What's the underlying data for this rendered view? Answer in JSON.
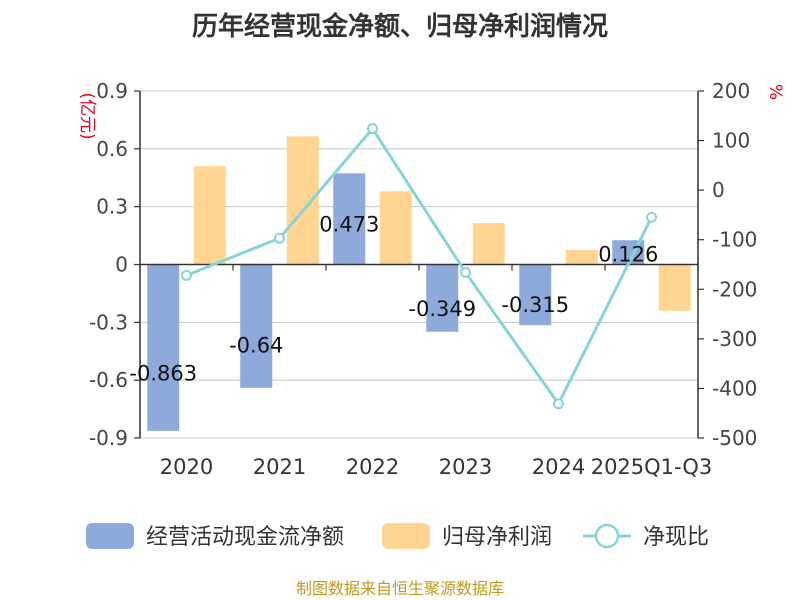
{
  "chart_data": {
    "type": "bar",
    "title": "历年经营现金净额、归母净利润情况",
    "categories": [
      "2020",
      "2021",
      "2022",
      "2023",
      "2024",
      "2025Q1-Q3"
    ],
    "left_unit": "(亿元)",
    "right_unit": "%",
    "left_ylim": [
      -0.9,
      0.9
    ],
    "left_ticks": [
      0.9,
      0.6,
      0.3,
      0,
      -0.3,
      -0.6,
      -0.9
    ],
    "left_tick_labels": [
      "0.9",
      "0.6",
      "0.3",
      "0",
      "-0.3",
      "-0.6",
      "-0.9"
    ],
    "right_ylim": [
      -500,
      200
    ],
    "right_ticks": [
      200,
      100,
      0,
      -100,
      -200,
      -300,
      -400,
      -500
    ],
    "right_tick_labels": [
      "200",
      "100",
      "0",
      "-100",
      "-200",
      "-300",
      "-400",
      "-500"
    ],
    "grid": true,
    "legend_position": "bottom",
    "series": [
      {
        "name": "经营活动现金流净额",
        "kind": "bar",
        "axis": "left",
        "color": "#8eaadb",
        "values": [
          -0.863,
          -0.64,
          0.473,
          -0.349,
          -0.315,
          0.126
        ],
        "labels": [
          "-0.863",
          "-0.64",
          "0.473",
          "-0.349",
          "-0.315",
          "0.126"
        ]
      },
      {
        "name": "归母净利润",
        "kind": "bar",
        "axis": "left",
        "color": "#ffd591",
        "values": [
          0.51,
          0.665,
          0.38,
          0.215,
          0.075,
          -0.24
        ]
      },
      {
        "name": "净现比",
        "kind": "line",
        "axis": "right",
        "color": "#86d3d8",
        "values": [
          -172,
          -97,
          124,
          -166,
          -431,
          -55
        ]
      }
    ]
  },
  "footer": {
    "source": "制图数据来自恒生聚源数据库"
  }
}
